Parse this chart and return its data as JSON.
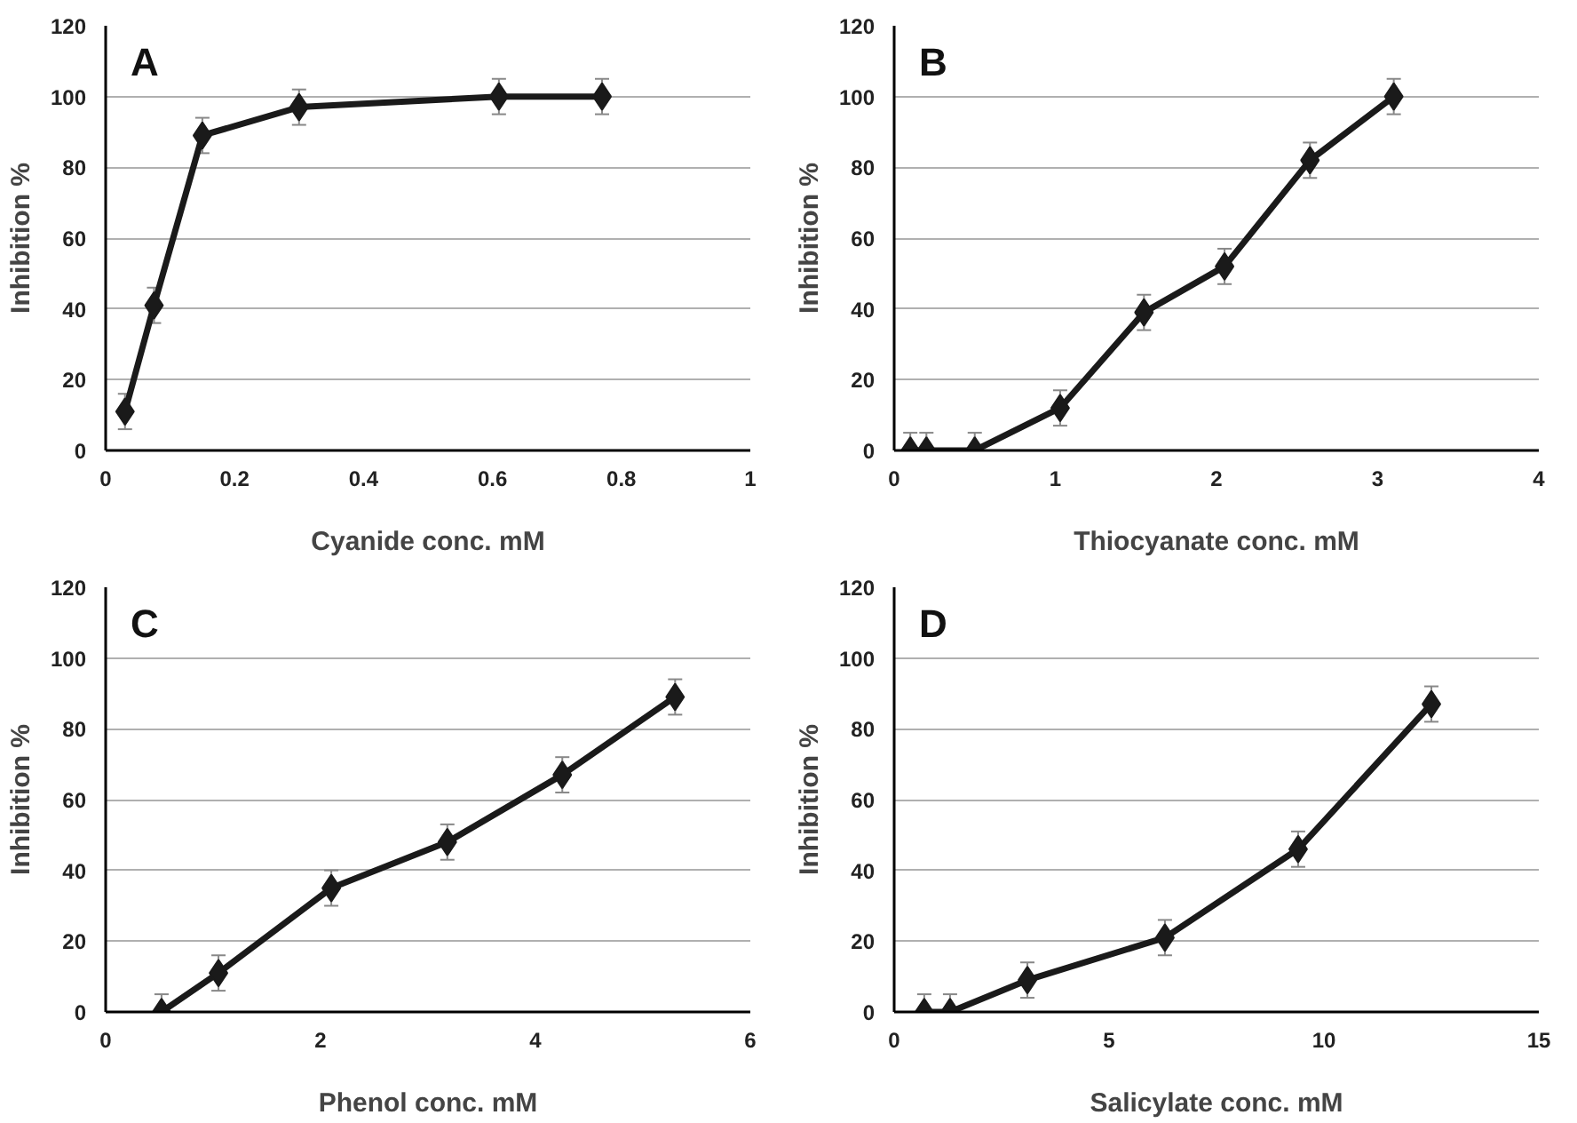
{
  "chart_data": [
    {
      "type": "line",
      "annotations": [
        "A"
      ],
      "xlabel": "Cyanide conc. mM",
      "ylabel": "Inhibition %",
      "x": [
        0.03,
        0.075,
        0.15,
        0.3,
        0.61,
        0.77
      ],
      "series": [
        {
          "color": "#1a1a1a",
          "values": [
            11,
            41,
            89,
            97,
            100,
            100
          ],
          "errors": [
            5,
            5,
            5,
            5,
            5,
            5
          ]
        }
      ],
      "xlim": [
        0,
        1
      ],
      "xticks": [
        0,
        0.2,
        0.4,
        0.6,
        0.8,
        1
      ],
      "ylim": [
        0,
        120
      ],
      "yticks": [
        0,
        20,
        40,
        60,
        80,
        100,
        120
      ],
      "grid": "y",
      "marker": "diamond",
      "line_style": "solid"
    },
    {
      "type": "line",
      "annotations": [
        "B"
      ],
      "xlabel": "Thiocyanate conc. mM",
      "ylabel": "Inhibition %",
      "x": [
        0.1,
        0.2,
        0.5,
        1.03,
        1.55,
        2.05,
        2.58,
        3.1
      ],
      "series": [
        {
          "color": "#1a1a1a",
          "values": [
            0,
            0,
            0,
            12,
            39,
            52,
            82,
            100
          ],
          "errors": [
            5,
            5,
            5,
            5,
            5,
            5,
            5,
            5
          ]
        }
      ],
      "xlim": [
        0,
        4
      ],
      "xticks": [
        0,
        1,
        2,
        3,
        4
      ],
      "ylim": [
        0,
        120
      ],
      "yticks": [
        0,
        20,
        40,
        60,
        80,
        100,
        120
      ],
      "grid": "y",
      "marker": "diamond",
      "line_style": "solid"
    },
    {
      "type": "line",
      "annotations": [
        "C"
      ],
      "xlabel": "Phenol conc. mM",
      "ylabel": "Inhibition %",
      "x": [
        0.52,
        1.05,
        2.1,
        3.18,
        4.25,
        5.3
      ],
      "series": [
        {
          "color": "#1a1a1a",
          "values": [
            0,
            11,
            35,
            48,
            67,
            89
          ],
          "errors": [
            5,
            5,
            5,
            5,
            5,
            5
          ]
        }
      ],
      "xlim": [
        0,
        6
      ],
      "xticks": [
        0,
        2,
        4,
        6
      ],
      "ylim": [
        0,
        120
      ],
      "yticks": [
        0,
        20,
        40,
        60,
        80,
        100,
        120
      ],
      "grid": "y",
      "marker": "diamond",
      "line_style": "solid"
    },
    {
      "type": "line",
      "annotations": [
        "D"
      ],
      "xlabel": "Salicylate conc. mM",
      "ylabel": "Inhibition %",
      "x": [
        0.7,
        1.3,
        3.1,
        6.3,
        9.4,
        12.5
      ],
      "series": [
        {
          "color": "#1a1a1a",
          "values": [
            0,
            0,
            9,
            21,
            46,
            87
          ],
          "errors": [
            5,
            5,
            5,
            5,
            5,
            5
          ]
        }
      ],
      "xlim": [
        0,
        15
      ],
      "xticks": [
        0,
        5,
        10,
        15
      ],
      "ylim": [
        0,
        120
      ],
      "yticks": [
        0,
        20,
        40,
        60,
        80,
        100,
        120
      ],
      "grid": "y",
      "marker": "diamond",
      "line_style": "solid"
    }
  ]
}
